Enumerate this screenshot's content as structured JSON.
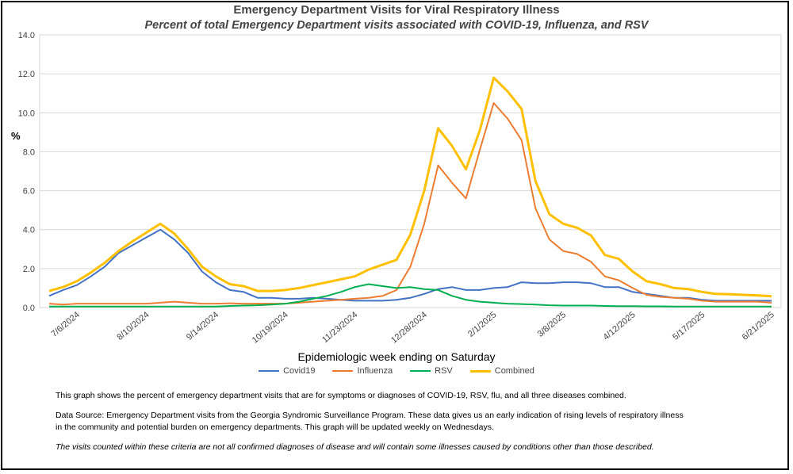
{
  "chart_data": {
    "type": "line",
    "title": "Emergency Department Visits for Viral Respiratory Illness",
    "subtitle": "Percent of total Emergency Department visits associated with COVID-19, Influenza, and RSV",
    "xlabel": "Epidemiologic  week ending on Saturday",
    "ylabel": "%",
    "ylim": [
      0,
      14
    ],
    "yticks": [
      "0.0",
      "2.0",
      "4.0",
      "6.0",
      "8.0",
      "10.0",
      "12.0",
      "14.0"
    ],
    "x": [
      "6/22/2024",
      "6/29/2024",
      "7/6/2024",
      "7/13/2024",
      "7/20/2024",
      "7/27/2024",
      "8/3/2024",
      "8/10/2024",
      "8/17/2024",
      "8/24/2024",
      "8/31/2024",
      "9/7/2024",
      "9/14/2024",
      "9/21/2024",
      "9/28/2024",
      "10/5/2024",
      "10/12/2024",
      "10/19/2024",
      "10/26/2024",
      "11/2/2024",
      "11/9/2024",
      "11/16/2024",
      "11/23/2024",
      "11/30/2024",
      "12/7/2024",
      "12/14/2024",
      "12/21/2024",
      "12/28/2024",
      "1/4/2025",
      "1/11/2025",
      "1/18/2025",
      "1/25/2025",
      "2/1/2025",
      "2/8/2025",
      "2/15/2025",
      "2/22/2025",
      "3/1/2025",
      "3/8/2025",
      "3/15/2025",
      "3/22/2025",
      "3/29/2025",
      "4/5/2025",
      "4/12/2025",
      "4/19/2025",
      "4/26/2025",
      "5/3/2025",
      "5/10/2025",
      "5/17/2025",
      "5/24/2025",
      "5/31/2025",
      "6/7/2025",
      "6/14/2025",
      "6/21/2025"
    ],
    "xtick_labels": [
      {
        "index": 2,
        "label": "7/6/2024"
      },
      {
        "index": 7,
        "label": "8/10/2024"
      },
      {
        "index": 12,
        "label": "9/14/2024"
      },
      {
        "index": 17,
        "label": "10/19/2024"
      },
      {
        "index": 22,
        "label": "11/23/2024"
      },
      {
        "index": 27,
        "label": "12/28/2024"
      },
      {
        "index": 32,
        "label": "2/1/2025"
      },
      {
        "index": 37,
        "label": "3/8/2025"
      },
      {
        "index": 42,
        "label": "4/12/2025"
      },
      {
        "index": 47,
        "label": "5/17/2025"
      },
      {
        "index": 52,
        "label": "6/21/2025"
      }
    ],
    "series": [
      {
        "name": "Covid19",
        "color": "#4472C4",
        "values": [
          0.6,
          0.9,
          1.15,
          1.6,
          2.1,
          2.8,
          3.2,
          3.6,
          4.0,
          3.5,
          2.8,
          1.85,
          1.3,
          0.9,
          0.8,
          0.5,
          0.5,
          0.45,
          0.45,
          0.5,
          0.45,
          0.4,
          0.35,
          0.35,
          0.35,
          0.4,
          0.5,
          0.7,
          0.95,
          1.05,
          0.9,
          0.9,
          1.0,
          1.05,
          1.3,
          1.25,
          1.25,
          1.3,
          1.3,
          1.25,
          1.05,
          1.05,
          0.8,
          0.7,
          0.6,
          0.5,
          0.5,
          0.4,
          0.35,
          0.35,
          0.35,
          0.35,
          0.35
        ]
      },
      {
        "name": "Influenza",
        "color": "#ED7D31",
        "values": [
          0.2,
          0.15,
          0.2,
          0.2,
          0.2,
          0.2,
          0.2,
          0.2,
          0.25,
          0.3,
          0.25,
          0.2,
          0.2,
          0.22,
          0.2,
          0.2,
          0.2,
          0.2,
          0.25,
          0.3,
          0.35,
          0.4,
          0.45,
          0.5,
          0.6,
          0.9,
          2.1,
          4.3,
          7.3,
          6.4,
          5.6,
          8.1,
          10.5,
          9.7,
          8.6,
          5.1,
          3.5,
          2.9,
          2.75,
          2.35,
          1.6,
          1.4,
          1.0,
          0.65,
          0.55,
          0.5,
          0.45,
          0.35,
          0.3,
          0.3,
          0.3,
          0.3,
          0.25
        ]
      },
      {
        "name": "RSV",
        "color": "#00B050",
        "values": [
          0.05,
          0.05,
          0.05,
          0.05,
          0.05,
          0.05,
          0.05,
          0.05,
          0.05,
          0.05,
          0.05,
          0.05,
          0.05,
          0.08,
          0.1,
          0.12,
          0.15,
          0.2,
          0.3,
          0.45,
          0.6,
          0.8,
          1.05,
          1.2,
          1.1,
          1.0,
          1.05,
          0.95,
          0.9,
          0.6,
          0.4,
          0.3,
          0.25,
          0.2,
          0.18,
          0.15,
          0.12,
          0.1,
          0.1,
          0.1,
          0.08,
          0.07,
          0.07,
          0.06,
          0.06,
          0.05,
          0.05,
          0.05,
          0.05,
          0.05,
          0.05,
          0.05,
          0.05
        ]
      },
      {
        "name": "Combined",
        "color": "#FFC000",
        "values": [
          0.85,
          1.05,
          1.35,
          1.8,
          2.3,
          2.9,
          3.4,
          3.85,
          4.3,
          3.8,
          3.0,
          2.1,
          1.6,
          1.2,
          1.1,
          0.85,
          0.85,
          0.9,
          1.0,
          1.15,
          1.3,
          1.45,
          1.6,
          1.95,
          2.2,
          2.45,
          3.75,
          6.0,
          9.2,
          8.3,
          7.1,
          9.1,
          11.8,
          11.1,
          10.2,
          6.5,
          4.8,
          4.3,
          4.1,
          3.7,
          2.7,
          2.5,
          1.85,
          1.35,
          1.2,
          1.0,
          0.95,
          0.8,
          0.7,
          0.68,
          0.65,
          0.62,
          0.58
        ]
      }
    ],
    "legend": [
      "Covid19",
      "Influenza",
      "RSV",
      "Combined"
    ],
    "legend_position": "bottom",
    "grid": true
  },
  "notes": {
    "p1": "This graph shows the percent of emergency department visits that are for symptoms or diagnoses of COVID-19, RSV, flu, and all three diseases combined.",
    "p2a": "Data Source: Emergency Department visits from the Georgia Syndromic Surveillance Program. These data gives us an early indication of rising levels of respiratory illness",
    "p2b": "in the community and potential burden on emergency departments. This graph will be updated weekly on Wednesdays.",
    "p3": "The visits counted within these criteria are not all confirmed diagnoses of disease and will contain some illnesses caused by conditions other than those described."
  }
}
